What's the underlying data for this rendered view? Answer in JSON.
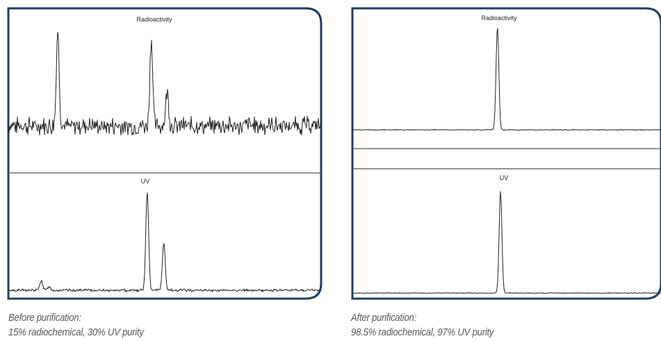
{
  "panels": [
    {
      "caption_line1": "Before purification:",
      "caption_line2": "15% radiochemical, 30% UV purity"
    },
    {
      "caption_line1": "After purification:",
      "caption_line2": "98.5% radiochemical, 97% UV purity"
    }
  ],
  "colors": {
    "frame": "#1f3f66",
    "trace": "#222222",
    "caption": "#5a5a5a"
  },
  "chart_data": [
    {
      "type": "line",
      "panel": "before",
      "traces": [
        {
          "label": "Radioactivity",
          "baseline_noise": 0.1,
          "peaks": [
            {
              "x": 0.158,
              "height": 0.98
            },
            {
              "x": 0.457,
              "height": 0.9
            },
            {
              "x": 0.508,
              "height": 0.36
            }
          ]
        },
        {
          "label": "UV",
          "baseline_noise": 0.015,
          "peaks": [
            {
              "x": 0.105,
              "height": 0.1
            },
            {
              "x": 0.13,
              "height": 0.04
            },
            {
              "x": 0.444,
              "height": 0.98
            },
            {
              "x": 0.497,
              "height": 0.48
            }
          ]
        }
      ]
    },
    {
      "type": "line",
      "panel": "after",
      "traces": [
        {
          "label": "Radioactivity",
          "baseline_noise": 0.004,
          "peaks": [
            {
              "x": 0.47,
              "height": 0.99
            }
          ]
        },
        {
          "label": "UV",
          "baseline_noise": 0.004,
          "peaks": [
            {
              "x": 0.48,
              "height": 0.98
            }
          ]
        }
      ]
    }
  ]
}
